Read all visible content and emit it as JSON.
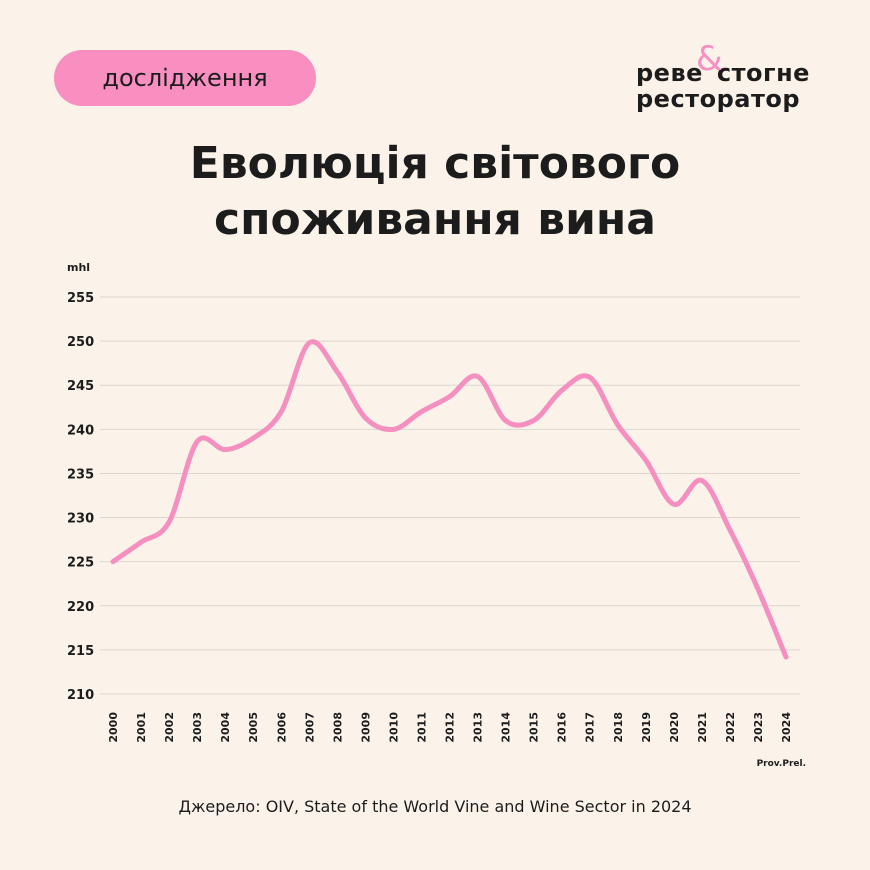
{
  "header": {
    "badge": "дослідження",
    "logo": {
      "word1": "реве",
      "ampersand": "&",
      "word2": "стогне",
      "word3": "ресторатор"
    }
  },
  "chart_data": {
    "type": "line",
    "title": "Еволюція світового споживання вина",
    "y_label": "mhl",
    "categories": [
      "2000",
      "2001",
      "2002",
      "2003",
      "2004",
      "2005",
      "2006",
      "2007",
      "2008",
      "2009",
      "2010",
      "2011",
      "2012",
      "2013",
      "2014",
      "2015",
      "2016",
      "2017",
      "2018",
      "2019",
      "2020",
      "2021",
      "2022",
      "2023",
      "2024"
    ],
    "values": [
      225,
      227.2,
      229.5,
      238.6,
      237.7,
      239,
      242,
      249.8,
      246.5,
      241.3,
      240,
      242,
      243.7,
      246,
      241,
      241,
      244.4,
      245.9,
      240.5,
      236.5,
      231.5,
      234.2,
      228.6,
      221.9,
      214.2
    ],
    "color": "#f48fc0",
    "ylim": [
      210,
      255
    ],
    "yticks": [
      210,
      215,
      220,
      225,
      230,
      235,
      240,
      245,
      250,
      255
    ],
    "grid": true,
    "annotation": "Prov.Prel."
  },
  "footer": {
    "source": "Джерело: OIV, State of the World Vine and Wine Sector in 2024"
  }
}
